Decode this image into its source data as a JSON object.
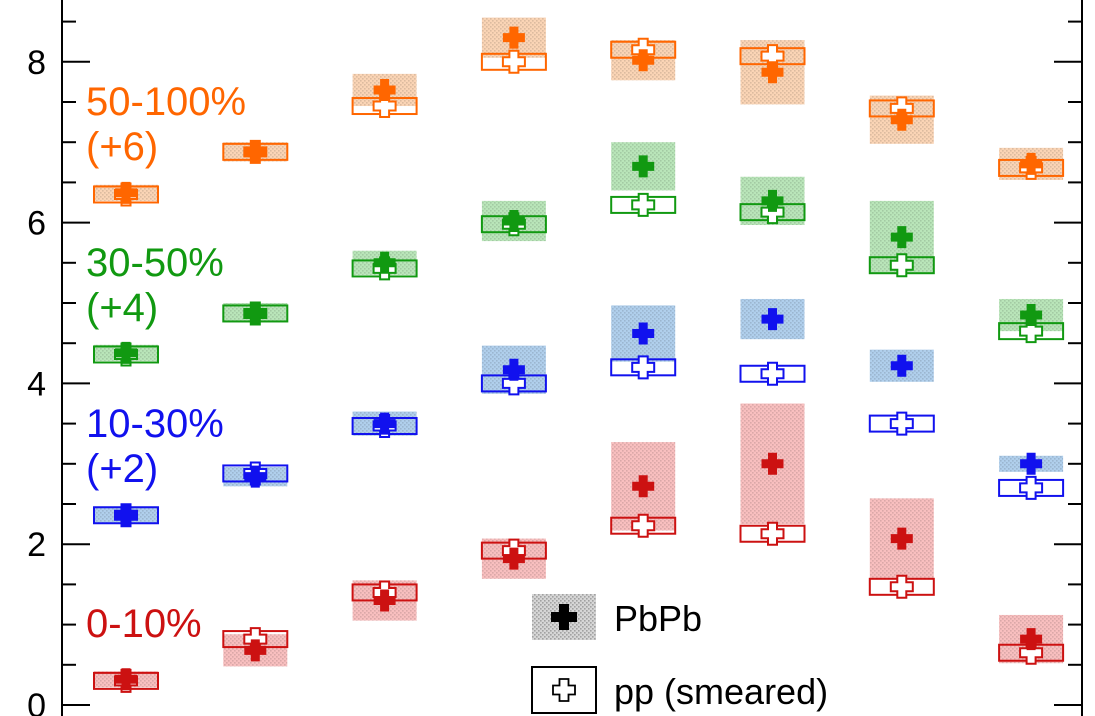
{
  "chart_data": {
    "type": "scatter",
    "title": "",
    "xlabel": "",
    "ylabel": "",
    "ylim": [
      0,
      8.5
    ],
    "x": [
      1,
      2,
      3,
      4,
      5,
      6,
      7,
      8
    ],
    "y_ticks": [
      "0",
      "2",
      "4",
      "6",
      "8"
    ],
    "grid": false,
    "legend_position": "bottom-center",
    "legend": [
      {
        "label": "PbPb",
        "marker": "filled-cross"
      },
      {
        "label": "pp (smeared)",
        "marker": "open-cross"
      }
    ],
    "groups": [
      {
        "label": "0-10%",
        "offset": "",
        "color": "#cc1111",
        "shade": "#f28b8b",
        "pbpb": [
          0.32,
          0.68,
          1.3,
          1.82,
          2.72,
          3.0,
          2.07,
          0.82
        ],
        "pbpb_unc": [
          0.1,
          0.2,
          0.25,
          0.25,
          0.55,
          0.75,
          0.5,
          0.3
        ],
        "pp": [
          0.3,
          0.82,
          1.4,
          1.92,
          2.23,
          2.13,
          1.47,
          0.65
        ]
      },
      {
        "label": "10-30%",
        "offset": "(+2)",
        "color": "#1111ee",
        "shade": "#6fa8dc",
        "pbpb": [
          2.37,
          2.84,
          3.5,
          4.17,
          4.62,
          4.8,
          4.22,
          3.0
        ],
        "pbpb_unc": [
          0.1,
          0.12,
          0.15,
          0.3,
          0.35,
          0.25,
          0.2,
          0.1
        ],
        "pp": [
          2.36,
          2.88,
          3.47,
          4.0,
          4.2,
          4.12,
          3.5,
          2.7
        ]
      },
      {
        "label": "30-50%",
        "offset": "(+4)",
        "color": "#119911",
        "shade": "#7fcf7f",
        "pbpb": [
          4.38,
          4.88,
          5.5,
          6.02,
          6.7,
          6.27,
          5.82,
          4.85
        ],
        "pbpb_unc": [
          0.1,
          0.12,
          0.15,
          0.25,
          0.3,
          0.3,
          0.45,
          0.2
        ],
        "pp": [
          4.36,
          4.87,
          5.43,
          5.98,
          6.22,
          6.13,
          5.47,
          4.65
        ]
      },
      {
        "label": "50-100%",
        "offset": "(+6)",
        "color": "#ff6600",
        "shade": "#f5b078",
        "pbpb": [
          6.37,
          6.88,
          7.65,
          8.3,
          8.02,
          7.87,
          7.28,
          6.73
        ],
        "pbpb_unc": [
          0.1,
          0.12,
          0.2,
          0.25,
          0.25,
          0.4,
          0.3,
          0.2
        ],
        "pp": [
          6.35,
          6.88,
          7.45,
          8.0,
          8.15,
          8.07,
          7.42,
          6.68
        ]
      }
    ]
  }
}
